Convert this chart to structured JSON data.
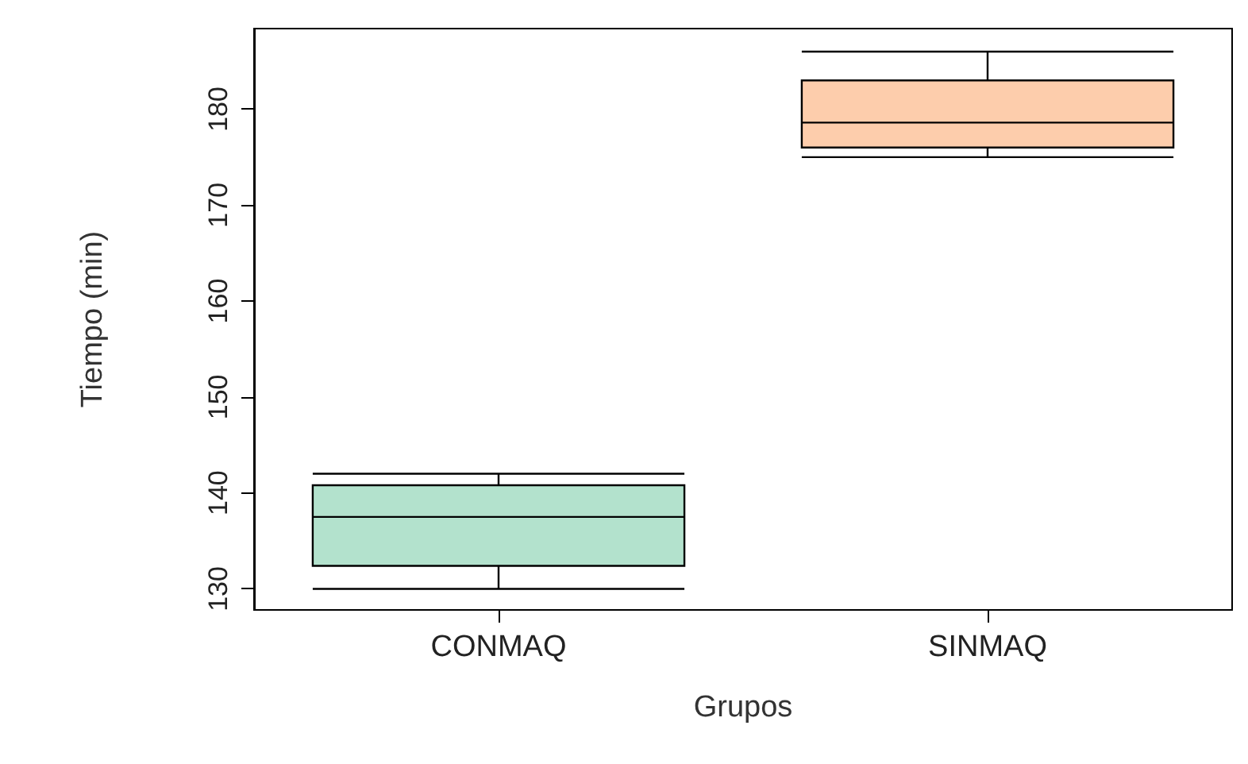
{
  "chart_data": {
    "type": "box",
    "xlabel": "Grupos",
    "ylabel": "Tiempo (min)",
    "categories": [
      "CONMAQ",
      "SINMAQ"
    ],
    "boxes": [
      {
        "low": 130,
        "q1": 132.4,
        "median": 137.5,
        "q3": 140.8,
        "high": 142
      },
      {
        "low": 175,
        "q1": 176,
        "median": 178.6,
        "q3": 183,
        "high": 186
      }
    ],
    "colors": [
      "#b3e2cd",
      "#fdcdac"
    ],
    "ylim": [
      127.8,
      188.4
    ],
    "yticks": [
      130,
      140,
      150,
      160,
      170,
      180
    ]
  }
}
